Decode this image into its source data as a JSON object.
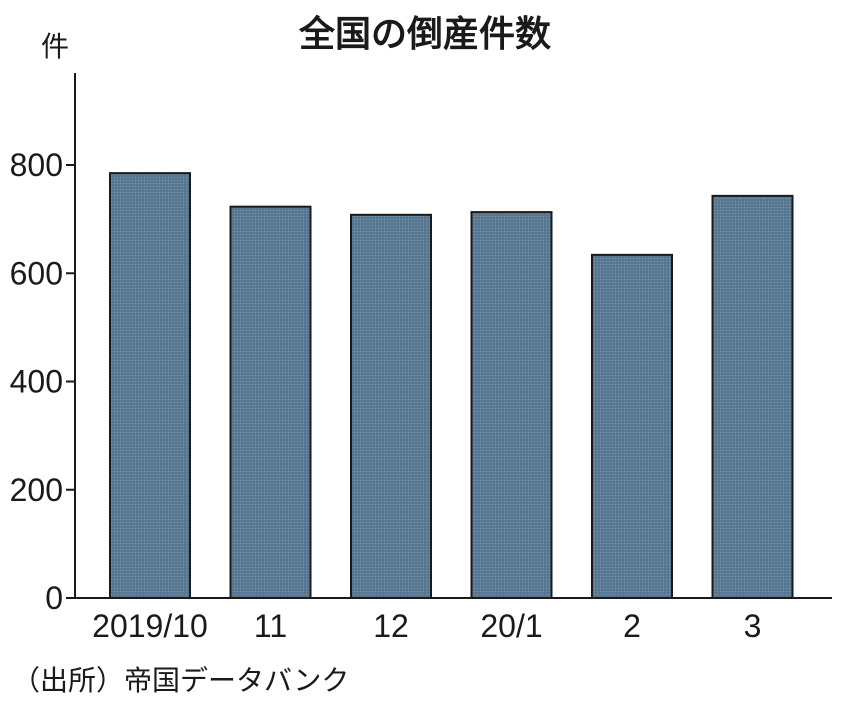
{
  "chart_data": {
    "type": "bar",
    "title": "全国の倒産件数",
    "ylabel": "件",
    "xlabel": "",
    "categories": [
      "2019/10",
      "11",
      "12",
      "20/1",
      "2",
      "3"
    ],
    "values": [
      785,
      723,
      708,
      713,
      634,
      743
    ],
    "ylim": [
      0,
      970
    ],
    "yticks": [
      0,
      200,
      400,
      600,
      800
    ],
    "grid": false,
    "bar_color": "#5b7a94"
  },
  "source": "（出所）帝国データバンク"
}
